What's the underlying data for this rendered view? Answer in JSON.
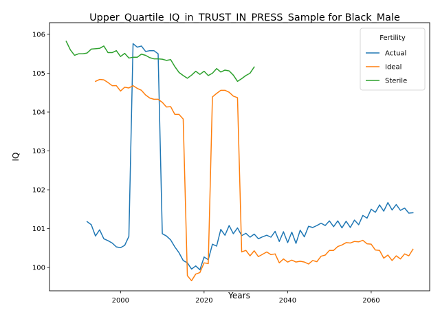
{
  "chart_data": {
    "type": "line",
    "title": "Upper_Quartile_IQ_in_TRUST_IN_PRESS_Sample for Black_Male",
    "xlabel": "Years",
    "ylabel": "IQ",
    "xlim": [
      1983,
      2074
    ],
    "ylim": [
      99.4,
      106.3
    ],
    "xticks": [
      2000,
      2020,
      2040,
      2060
    ],
    "yticks": [
      100,
      101,
      102,
      103,
      104,
      105,
      106
    ],
    "grid": false,
    "legend": {
      "title": "Fertility",
      "placement": "top-right"
    },
    "series": [
      {
        "name": "Actual",
        "color": "#1f77b4",
        "x": [
          1992,
          1993,
          1994,
          1995,
          1996,
          1997,
          1998,
          1999,
          2000,
          2001,
          2002,
          2003,
          2004,
          2005,
          2006,
          2007,
          2008,
          2009,
          2010,
          2011,
          2012,
          2013,
          2014,
          2015,
          2016,
          2017,
          2018,
          2019,
          2020,
          2021,
          2022,
          2023,
          2024,
          2025,
          2026,
          2027,
          2028,
          2029,
          2030,
          2031,
          2032,
          2033,
          2034,
          2035,
          2036,
          2037,
          2038,
          2039,
          2040,
          2041,
          2042,
          2043,
          2044,
          2045,
          2046,
          2047,
          2048,
          2049,
          2050,
          2051,
          2052,
          2053,
          2054,
          2055,
          2056,
          2057,
          2058,
          2059,
          2060,
          2061,
          2062,
          2063,
          2064,
          2065,
          2066,
          2067,
          2068,
          2069,
          2070
        ],
        "y": [
          101.18,
          101.1,
          100.81,
          100.97,
          100.74,
          100.69,
          100.63,
          100.53,
          100.51,
          100.57,
          100.8,
          105.76,
          105.67,
          105.7,
          105.56,
          105.58,
          105.58,
          105.5,
          100.87,
          100.81,
          100.71,
          100.53,
          100.38,
          100.18,
          100.12,
          99.96,
          100.04,
          99.94,
          100.27,
          100.2,
          100.6,
          100.55,
          100.98,
          100.83,
          101.08,
          100.87,
          101.02,
          100.82,
          100.88,
          100.78,
          100.86,
          100.74,
          100.79,
          100.83,
          100.78,
          100.93,
          100.67,
          100.92,
          100.64,
          100.91,
          100.62,
          100.96,
          100.79,
          101.06,
          101.03,
          101.08,
          101.14,
          101.08,
          101.2,
          101.05,
          101.2,
          101.02,
          101.19,
          101.03,
          101.22,
          101.1,
          101.34,
          101.27,
          101.5,
          101.42,
          101.61,
          101.45,
          101.67,
          101.48,
          101.62,
          101.47,
          101.53,
          101.4,
          101.41
        ]
      },
      {
        "name": "Ideal",
        "color": "#ff7f0e",
        "x": [
          1994,
          1995,
          1996,
          1997,
          1998,
          1999,
          2000,
          2001,
          2002,
          2003,
          2004,
          2005,
          2006,
          2007,
          2008,
          2009,
          2010,
          2011,
          2012,
          2013,
          2014,
          2015,
          2016,
          2017,
          2018,
          2019,
          2020,
          2021,
          2022,
          2023,
          2024,
          2025,
          2026,
          2027,
          2028,
          2029,
          2030,
          2031,
          2032,
          2033,
          2034,
          2035,
          2036,
          2037,
          2038,
          2039,
          2040,
          2041,
          2042,
          2043,
          2044,
          2045,
          2046,
          2047,
          2048,
          2049,
          2050,
          2051,
          2052,
          2053,
          2054,
          2055,
          2056,
          2057,
          2058,
          2059,
          2060,
          2061,
          2062,
          2063,
          2064,
          2065,
          2066,
          2067,
          2068,
          2069,
          2070
        ],
        "y": [
          104.79,
          104.84,
          104.83,
          104.76,
          104.68,
          104.68,
          104.54,
          104.64,
          104.62,
          104.68,
          104.61,
          104.56,
          104.44,
          104.36,
          104.33,
          104.33,
          104.25,
          104.13,
          104.14,
          103.94,
          103.94,
          103.82,
          99.79,
          99.66,
          99.83,
          99.87,
          100.12,
          100.1,
          104.39,
          104.48,
          104.56,
          104.56,
          104.51,
          104.41,
          104.37,
          100.4,
          100.44,
          100.3,
          100.43,
          100.28,
          100.34,
          100.4,
          100.33,
          100.35,
          100.12,
          100.22,
          100.14,
          100.19,
          100.14,
          100.16,
          100.14,
          100.09,
          100.18,
          100.15,
          100.29,
          100.32,
          100.44,
          100.44,
          100.54,
          100.58,
          100.64,
          100.63,
          100.67,
          100.66,
          100.7,
          100.61,
          100.6,
          100.45,
          100.44,
          100.24,
          100.32,
          100.18,
          100.3,
          100.22,
          100.35,
          100.3,
          100.47
        ]
      },
      {
        "name": "Sterile",
        "color": "#2ca02c",
        "x": [
          1987,
          1988,
          1989,
          1990,
          1991,
          1992,
          1993,
          1994,
          1995,
          1996,
          1997,
          1998,
          1999,
          2000,
          2001,
          2002,
          2003,
          2004,
          2005,
          2006,
          2007,
          2008,
          2009,
          2010,
          2011,
          2012,
          2013,
          2014,
          2015,
          2016,
          2017,
          2018,
          2019,
          2020,
          2021,
          2022,
          2023,
          2024,
          2025,
          2026,
          2027,
          2028,
          2029,
          2030,
          2031,
          2032
        ],
        "y": [
          105.82,
          105.6,
          105.46,
          105.5,
          105.5,
          105.52,
          105.62,
          105.63,
          105.64,
          105.7,
          105.53,
          105.53,
          105.58,
          105.43,
          105.51,
          105.39,
          105.41,
          105.41,
          105.49,
          105.46,
          105.4,
          105.37,
          105.37,
          105.36,
          105.33,
          105.35,
          105.17,
          105.02,
          104.94,
          104.87,
          104.95,
          105.05,
          104.97,
          105.05,
          104.94,
          105.0,
          105.12,
          105.03,
          105.08,
          105.06,
          104.95,
          104.79,
          104.86,
          104.94,
          105.0,
          105.16
        ]
      }
    ]
  }
}
